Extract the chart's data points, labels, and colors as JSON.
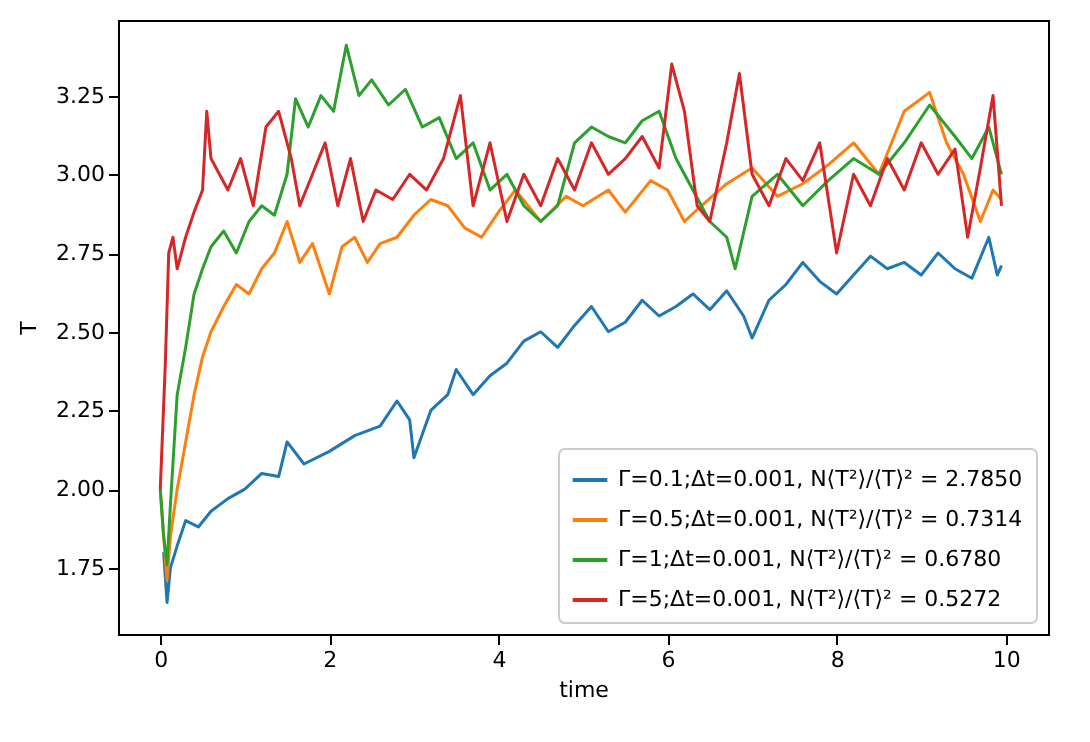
{
  "chart_data": {
    "type": "line",
    "xlabel": "time",
    "ylabel": "T",
    "xlim": [
      -0.5,
      10.5
    ],
    "xticks": [
      0,
      2,
      4,
      6,
      8,
      10
    ],
    "ylim": [
      1.54,
      3.49
    ],
    "yticks": [
      {
        "value": 1.75,
        "label": "1.75"
      },
      {
        "value": 2,
        "label": "2.00"
      },
      {
        "value": 2.25,
        "label": "2.25"
      },
      {
        "value": 2.5,
        "label": "2.50"
      },
      {
        "value": 2.75,
        "label": "2.75"
      },
      {
        "value": 3,
        "label": "3.00"
      },
      {
        "value": 3.25,
        "label": "3.25"
      }
    ],
    "grid": false,
    "legend": "bottom right",
    "series": [
      {
        "name": "Γ=0.1;Δt=0.001, N⟨T²⟩/⟨T⟩² = 2.7850",
        "color": "#1f77b4",
        "x": [
          0.04,
          0.08,
          0.12,
          0.2,
          0.3,
          0.45,
          0.6,
          0.8,
          1.0,
          1.2,
          1.4,
          1.5,
          1.7,
          2.0,
          2.3,
          2.6,
          2.8,
          2.95,
          3.0,
          3.2,
          3.4,
          3.5,
          3.7,
          3.9,
          4.1,
          4.3,
          4.5,
          4.7,
          4.9,
          5.1,
          5.3,
          5.5,
          5.7,
          5.9,
          6.1,
          6.3,
          6.5,
          6.7,
          6.9,
          7.0,
          7.2,
          7.4,
          7.6,
          7.8,
          8.0,
          8.2,
          8.4,
          8.6,
          8.8,
          9.0,
          9.2,
          9.4,
          9.6,
          9.8,
          9.9,
          9.95
        ],
        "values": [
          1.8,
          1.64,
          1.75,
          1.82,
          1.9,
          1.88,
          1.93,
          1.97,
          2.0,
          2.05,
          2.04,
          2.15,
          2.08,
          2.12,
          2.17,
          2.2,
          2.28,
          2.22,
          2.1,
          2.25,
          2.3,
          2.38,
          2.3,
          2.36,
          2.4,
          2.47,
          2.5,
          2.45,
          2.52,
          2.58,
          2.5,
          2.53,
          2.6,
          2.55,
          2.58,
          2.62,
          2.57,
          2.63,
          2.55,
          2.48,
          2.6,
          2.65,
          2.72,
          2.66,
          2.62,
          2.68,
          2.74,
          2.7,
          2.72,
          2.68,
          2.75,
          2.7,
          2.67,
          2.8,
          2.68,
          2.71
        ]
      },
      {
        "name": "Γ=0.5;Δt=0.001, N⟨T²⟩/⟨T⟩² = 0.7314",
        "color": "#ff7f0e",
        "x": [
          0,
          0.04,
          0.08,
          0.12,
          0.2,
          0.3,
          0.4,
          0.5,
          0.6,
          0.75,
          0.9,
          1.05,
          1.2,
          1.35,
          1.5,
          1.65,
          1.8,
          2.0,
          2.15,
          2.3,
          2.45,
          2.6,
          2.8,
          3.0,
          3.2,
          3.4,
          3.6,
          3.8,
          4.0,
          4.2,
          4.5,
          4.8,
          5.0,
          5.3,
          5.5,
          5.8,
          6.0,
          6.2,
          6.4,
          6.7,
          7.0,
          7.3,
          7.6,
          7.9,
          8.2,
          8.5,
          8.8,
          9.1,
          9.3,
          9.5,
          9.7,
          9.85,
          9.95
        ],
        "values": [
          2.0,
          1.85,
          1.71,
          1.85,
          2.0,
          2.15,
          2.3,
          2.42,
          2.5,
          2.58,
          2.65,
          2.62,
          2.7,
          2.75,
          2.85,
          2.72,
          2.78,
          2.62,
          2.77,
          2.8,
          2.72,
          2.78,
          2.8,
          2.87,
          2.92,
          2.9,
          2.83,
          2.8,
          2.88,
          2.95,
          2.85,
          2.93,
          2.9,
          2.95,
          2.88,
          2.98,
          2.95,
          2.85,
          2.9,
          2.97,
          3.02,
          2.93,
          2.97,
          3.03,
          3.1,
          3.0,
          3.2,
          3.26,
          3.1,
          3.0,
          2.85,
          2.95,
          2.92
        ]
      },
      {
        "name": "Γ=1;Δt=0.001, N⟨T²⟩/⟨T⟩² = 0.6780",
        "color": "#2ca02c",
        "x": [
          0,
          0.04,
          0.08,
          0.12,
          0.2,
          0.3,
          0.4,
          0.5,
          0.6,
          0.75,
          0.9,
          1.05,
          1.2,
          1.35,
          1.5,
          1.6,
          1.75,
          1.9,
          2.05,
          2.2,
          2.35,
          2.5,
          2.7,
          2.9,
          3.1,
          3.3,
          3.5,
          3.7,
          3.9,
          4.1,
          4.3,
          4.5,
          4.7,
          4.9,
          5.1,
          5.3,
          5.5,
          5.7,
          5.9,
          6.1,
          6.3,
          6.5,
          6.7,
          6.8,
          7.0,
          7.3,
          7.6,
          7.9,
          8.2,
          8.5,
          8.8,
          9.1,
          9.4,
          9.6,
          9.8,
          9.95
        ],
        "values": [
          2.0,
          1.85,
          1.76,
          1.95,
          2.3,
          2.45,
          2.62,
          2.7,
          2.77,
          2.82,
          2.75,
          2.85,
          2.9,
          2.87,
          3.0,
          3.24,
          3.15,
          3.25,
          3.2,
          3.41,
          3.25,
          3.3,
          3.22,
          3.27,
          3.15,
          3.18,
          3.05,
          3.1,
          2.95,
          3.0,
          2.9,
          2.85,
          2.9,
          3.1,
          3.15,
          3.12,
          3.1,
          3.17,
          3.2,
          3.05,
          2.95,
          2.85,
          2.8,
          2.7,
          2.93,
          3.0,
          2.9,
          2.98,
          3.05,
          3.0,
          3.1,
          3.22,
          3.12,
          3.05,
          3.15,
          3.0
        ]
      },
      {
        "name": "Γ=5;Δt=0.001, N⟨T²⟩/⟨T⟩² = 0.5272",
        "color": "#d62728",
        "x": [
          0,
          0.03,
          0.06,
          0.1,
          0.15,
          0.2,
          0.3,
          0.4,
          0.5,
          0.55,
          0.6,
          0.7,
          0.8,
          0.95,
          1.1,
          1.25,
          1.4,
          1.55,
          1.65,
          1.8,
          1.95,
          2.1,
          2.25,
          2.4,
          2.55,
          2.75,
          2.95,
          3.15,
          3.35,
          3.55,
          3.7,
          3.9,
          4.1,
          4.3,
          4.5,
          4.7,
          4.9,
          5.1,
          5.3,
          5.5,
          5.7,
          5.9,
          6.05,
          6.2,
          6.35,
          6.5,
          6.7,
          6.85,
          7.0,
          7.2,
          7.4,
          7.6,
          7.8,
          8.0,
          8.2,
          8.4,
          8.6,
          8.8,
          9.0,
          9.2,
          9.4,
          9.55,
          9.7,
          9.85,
          9.95
        ],
        "values": [
          2.0,
          2.2,
          2.4,
          2.75,
          2.8,
          2.7,
          2.8,
          2.88,
          2.95,
          3.2,
          3.05,
          3.0,
          2.95,
          3.05,
          2.9,
          3.15,
          3.2,
          3.05,
          2.9,
          3.0,
          3.1,
          2.9,
          3.05,
          2.85,
          2.95,
          2.92,
          3.0,
          2.95,
          3.05,
          3.25,
          2.9,
          3.1,
          2.85,
          3.0,
          2.9,
          3.05,
          2.95,
          3.1,
          3.0,
          3.05,
          3.12,
          3.02,
          3.35,
          3.2,
          2.9,
          2.85,
          3.1,
          3.32,
          3.0,
          2.9,
          3.05,
          2.98,
          3.1,
          2.75,
          3.0,
          2.9,
          3.05,
          2.95,
          3.1,
          3.0,
          3.08,
          2.8,
          3.02,
          3.25,
          2.9
        ]
      }
    ]
  }
}
